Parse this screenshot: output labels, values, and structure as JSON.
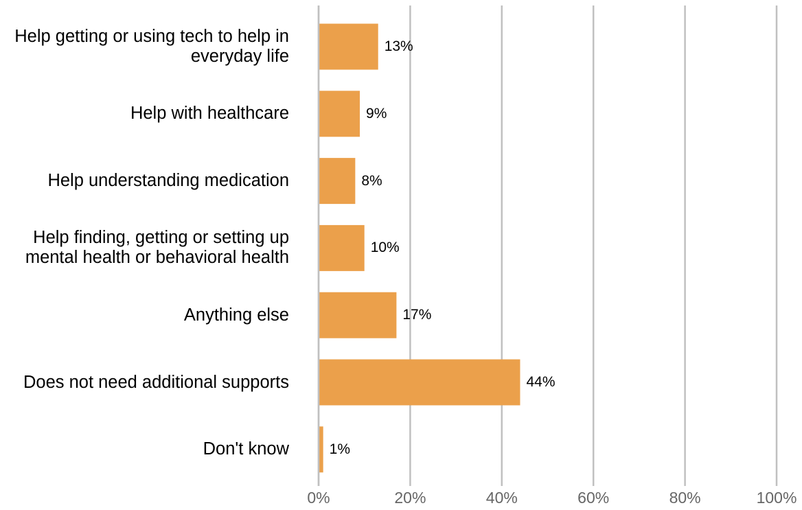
{
  "chart_data": {
    "type": "bar",
    "orientation": "horizontal",
    "categories": [
      "Help getting or using tech to help in everyday life",
      "Help with healthcare",
      "Help understanding medication",
      "Help finding, getting or setting up mental health or behavioral health",
      "Anything else",
      "Does not need additional supports",
      "Don't know"
    ],
    "values": [
      13,
      9,
      8,
      10,
      17,
      44,
      1
    ],
    "data_labels": [
      "13%",
      "9%",
      "8%",
      "10%",
      "17%",
      "44%",
      "1%"
    ],
    "x_ticks": [
      "0%",
      "20%",
      "40%",
      "60%",
      "80%",
      "100%"
    ],
    "xlim": [
      0,
      100
    ],
    "grid": true,
    "legend": "none",
    "title": "",
    "xlabel": "",
    "ylabel": "",
    "colors": {
      "bar": "#EBA04B",
      "grid": "#C0C0C0",
      "tick_text": "#666666",
      "label_text": "#000000"
    }
  }
}
